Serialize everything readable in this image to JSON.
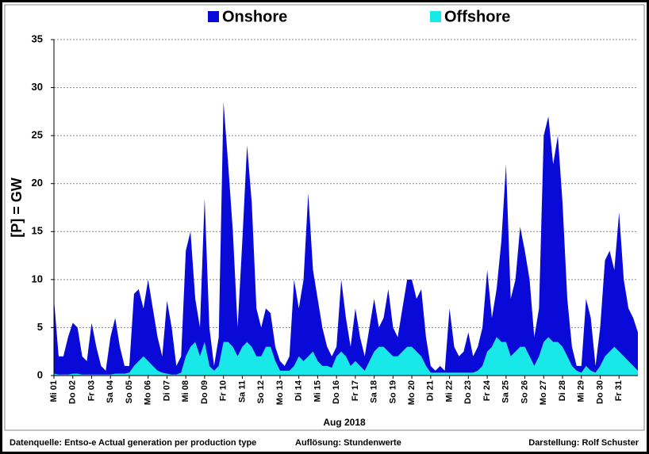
{
  "chart_data": {
    "type": "area",
    "stacked": true,
    "ylabel": "[P] = GW",
    "xlabel": "Aug 2018",
    "source": "Datenquelle: Entso-e  Actual generation per production type",
    "resolution": "Auflösung: Stundenwerte",
    "credit": "Darstellung:  Rolf Schuster",
    "legend": "top",
    "grid": true,
    "ylim": [
      0,
      35
    ],
    "yticks": [
      0,
      5,
      10,
      15,
      20,
      25,
      30,
      35
    ],
    "xlim": [
      0,
      31
    ],
    "xticks": [
      {
        "value": 0,
        "label": "Mi 01"
      },
      {
        "value": 1,
        "label": "Do 02"
      },
      {
        "value": 2,
        "label": "Fr 03"
      },
      {
        "value": 3,
        "label": "Sa 04"
      },
      {
        "value": 4,
        "label": "So 05"
      },
      {
        "value": 5,
        "label": "Mo 06"
      },
      {
        "value": 6,
        "label": "Di 07"
      },
      {
        "value": 7,
        "label": "Mi 08"
      },
      {
        "value": 8,
        "label": "Do 09"
      },
      {
        "value": 9,
        "label": "Fr 10"
      },
      {
        "value": 10,
        "label": "Sa 11"
      },
      {
        "value": 11,
        "label": "So 12"
      },
      {
        "value": 12,
        "label": "Mo 13"
      },
      {
        "value": 13,
        "label": "Di 14"
      },
      {
        "value": 14,
        "label": "Mi 15"
      },
      {
        "value": 15,
        "label": "Do 16"
      },
      {
        "value": 16,
        "label": "Fr 17"
      },
      {
        "value": 17,
        "label": "Sa 18"
      },
      {
        "value": 18,
        "label": "So 19"
      },
      {
        "value": 19,
        "label": "Mo 20"
      },
      {
        "value": 20,
        "label": "Di 21"
      },
      {
        "value": 21,
        "label": "Mi 22"
      },
      {
        "value": 22,
        "label": "Do 23"
      },
      {
        "value": 23,
        "label": "Fr 24"
      },
      {
        "value": 24,
        "label": "Sa 25"
      },
      {
        "value": 25,
        "label": "So 26"
      },
      {
        "value": 26,
        "label": "Mo 27"
      },
      {
        "value": 27,
        "label": "Di 28"
      },
      {
        "value": 28,
        "label": "Mi 29"
      },
      {
        "value": 29,
        "label": "Do 30"
      },
      {
        "value": 30,
        "label": "Fr 31"
      }
    ],
    "x": [
      0,
      0.25,
      0.5,
      0.75,
      1,
      1.25,
      1.5,
      1.75,
      2,
      2.25,
      2.5,
      2.75,
      3,
      3.25,
      3.5,
      3.75,
      4,
      4.25,
      4.5,
      4.75,
      5,
      5.25,
      5.5,
      5.75,
      6,
      6.25,
      6.5,
      6.75,
      7,
      7.25,
      7.5,
      7.75,
      8,
      8.25,
      8.5,
      8.75,
      9,
      9.25,
      9.5,
      9.75,
      10,
      10.25,
      10.5,
      10.75,
      11,
      11.25,
      11.5,
      11.75,
      12,
      12.25,
      12.5,
      12.75,
      13,
      13.25,
      13.5,
      13.75,
      14,
      14.25,
      14.5,
      14.75,
      15,
      15.25,
      15.5,
      15.75,
      16,
      16.25,
      16.5,
      16.75,
      17,
      17.25,
      17.5,
      17.75,
      18,
      18.25,
      18.5,
      18.75,
      19,
      19.25,
      19.5,
      19.75,
      20,
      20.25,
      20.5,
      20.75,
      21,
      21.25,
      21.5,
      21.75,
      22,
      22.25,
      22.5,
      22.75,
      23,
      23.25,
      23.5,
      23.75,
      24,
      24.25,
      24.5,
      24.75,
      25,
      25.25,
      25.5,
      25.75,
      26,
      26.25,
      26.5,
      26.75,
      27,
      27.25,
      27.5,
      27.75,
      28,
      28.25,
      28.5,
      28.75,
      29,
      29.25,
      29.5,
      29.75,
      30,
      30.25,
      30.5,
      30.75,
      31
    ],
    "series": [
      {
        "name": "Onshore",
        "color": "#0a0ad8",
        "values": [
          7.8,
          1.9,
          1.9,
          3.9,
          5.3,
          4.8,
          1.9,
          1.4,
          5.4,
          2.9,
          0.9,
          0.4,
          3.9,
          5.8,
          2.8,
          0.8,
          0.7,
          7.5,
          7.5,
          5,
          8.5,
          6,
          3.5,
          1.7,
          7.6,
          4.9,
          0.9,
          1.7,
          11,
          12,
          4.5,
          3,
          15,
          4,
          0.5,
          3,
          25,
          18.5,
          12,
          3,
          11,
          20.5,
          15,
          5,
          3,
          4,
          3.5,
          1.5,
          1,
          0.5,
          1.5,
          9,
          5,
          8.5,
          17,
          8.5,
          6.5,
          4,
          2,
          1.2,
          1,
          7.5,
          4,
          2,
          5.5,
          3,
          1.5,
          3.5,
          5.5,
          2,
          3,
          6.5,
          3,
          2,
          4.5,
          7,
          7,
          5.5,
          7,
          3,
          0.7,
          0.2,
          0.7,
          0.2,
          6.7,
          2.7,
          1.7,
          2.2,
          4.2,
          1.7,
          2.5,
          4,
          8.5,
          3,
          5,
          10.5,
          18.5,
          6,
          7.5,
          12.5,
          10,
          8,
          3,
          5,
          21.5,
          23,
          18.5,
          21.5,
          15,
          6,
          2,
          0.5,
          0.7,
          7,
          5.5,
          0.7,
          4,
          10,
          10.5,
          8,
          14.5,
          8,
          5.5,
          5,
          4
        ]
      },
      {
        "name": "Offshore",
        "color": "#19e8e8",
        "values": [
          0.2,
          0.1,
          0.1,
          0.1,
          0.2,
          0.2,
          0.1,
          0.1,
          0.1,
          0.1,
          0.1,
          0.1,
          0.1,
          0.2,
          0.2,
          0.2,
          0.3,
          1,
          1.5,
          2,
          1.5,
          1,
          0.5,
          0.3,
          0.2,
          0.1,
          0.1,
          0.3,
          2,
          3,
          3.5,
          2,
          3.5,
          1,
          0.5,
          1,
          3.5,
          3.5,
          3,
          2,
          3,
          3.5,
          3,
          2,
          2,
          3,
          3,
          1.5,
          0.5,
          0.5,
          0.5,
          1,
          2,
          1.5,
          2,
          2.5,
          1.5,
          1,
          1,
          0.8,
          2,
          2.5,
          2,
          1,
          1.5,
          1,
          0.5,
          1.5,
          2.5,
          3,
          3,
          2.5,
          2,
          2,
          2.5,
          3,
          3,
          2.5,
          2,
          1,
          0.3,
          0.3,
          0.3,
          0.3,
          0.3,
          0.3,
          0.3,
          0.3,
          0.3,
          0.3,
          0.5,
          1,
          2.5,
          3,
          4,
          3.5,
          3.5,
          2,
          2.5,
          3,
          3,
          2,
          1,
          2,
          3.5,
          4,
          3.5,
          3.5,
          3,
          2,
          1,
          0.5,
          0.3,
          1,
          0.5,
          0.3,
          1,
          2,
          2.5,
          3,
          2.5,
          2,
          1.5,
          1,
          0.5
        ]
      }
    ]
  }
}
